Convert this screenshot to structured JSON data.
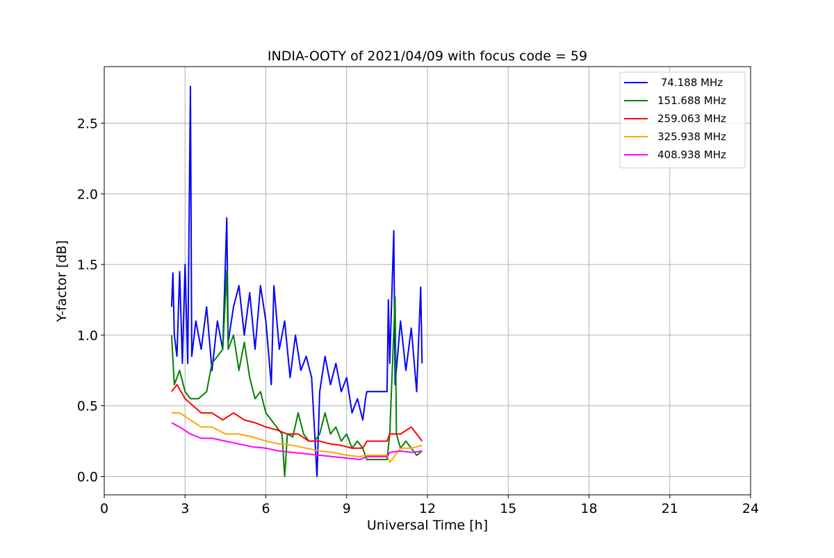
{
  "chart_data": {
    "type": "line",
    "title": "INDIA-OOTY of 2021/04/09 with focus code = 59",
    "xlabel": "Universal Time [h]",
    "ylabel": "Y-factor [dB]",
    "xlim": [
      0,
      24
    ],
    "ylim": [
      -0.13,
      2.9
    ],
    "x_ticks": [
      0,
      3,
      6,
      9,
      12,
      15,
      18,
      21,
      24
    ],
    "y_ticks": [
      0.0,
      0.5,
      1.0,
      1.5,
      2.0,
      2.5
    ],
    "x_tick_labels": [
      "0",
      "3",
      "6",
      "9",
      "12",
      "15",
      "18",
      "21",
      "24"
    ],
    "y_tick_labels": [
      "0.0",
      "0.5",
      "1.0",
      "1.5",
      "2.0",
      "2.5"
    ],
    "grid": true,
    "legend_position": "top-right",
    "series": [
      {
        "name": " 74.188 MHz",
        "color": "#0000ff",
        "points": [
          [
            2.5,
            1.2
          ],
          [
            2.55,
            1.44
          ],
          [
            2.6,
            1.0
          ],
          [
            2.7,
            0.85
          ],
          [
            2.8,
            1.45
          ],
          [
            2.9,
            0.8
          ],
          [
            3.0,
            1.5
          ],
          [
            3.1,
            0.8
          ],
          [
            3.2,
            2.76
          ],
          [
            3.25,
            0.85
          ],
          [
            3.4,
            1.1
          ],
          [
            3.6,
            0.9
          ],
          [
            3.8,
            1.2
          ],
          [
            4.0,
            0.75
          ],
          [
            4.2,
            1.1
          ],
          [
            4.4,
            0.9
          ],
          [
            4.55,
            1.83
          ],
          [
            4.6,
            0.95
          ],
          [
            4.8,
            1.2
          ],
          [
            5.0,
            1.35
          ],
          [
            5.2,
            1.0
          ],
          [
            5.4,
            1.3
          ],
          [
            5.6,
            0.9
          ],
          [
            5.8,
            1.35
          ],
          [
            6.0,
            1.1
          ],
          [
            6.2,
            0.65
          ],
          [
            6.3,
            1.35
          ],
          [
            6.5,
            0.9
          ],
          [
            6.7,
            1.1
          ],
          [
            6.9,
            0.7
          ],
          [
            7.1,
            1.0
          ],
          [
            7.3,
            0.75
          ],
          [
            7.5,
            0.85
          ],
          [
            7.7,
            0.7
          ],
          [
            7.9,
            0.0
          ],
          [
            8.0,
            0.6
          ],
          [
            8.2,
            0.85
          ],
          [
            8.4,
            0.65
          ],
          [
            8.6,
            0.8
          ],
          [
            8.8,
            0.6
          ],
          [
            9.0,
            0.7
          ],
          [
            9.2,
            0.45
          ],
          [
            9.4,
            0.55
          ],
          [
            9.6,
            0.4
          ],
          [
            9.7,
            0.55
          ],
          [
            9.75,
            0.6
          ],
          [
            10.5,
            0.6
          ],
          [
            10.55,
            1.25
          ],
          [
            10.6,
            0.8
          ],
          [
            10.75,
            1.74
          ],
          [
            10.8,
            0.65
          ],
          [
            11.0,
            1.1
          ],
          [
            11.2,
            0.75
          ],
          [
            11.4,
            1.05
          ],
          [
            11.6,
            0.6
          ],
          [
            11.75,
            1.34
          ],
          [
            11.8,
            0.8
          ]
        ]
      },
      {
        "name": "151.688 MHz",
        "color": "#008000",
        "points": [
          [
            2.5,
            1.0
          ],
          [
            2.6,
            0.65
          ],
          [
            2.8,
            0.75
          ],
          [
            3.0,
            0.6
          ],
          [
            3.2,
            0.55
          ],
          [
            3.5,
            0.55
          ],
          [
            3.8,
            0.6
          ],
          [
            4.0,
            0.8
          ],
          [
            4.2,
            0.85
          ],
          [
            4.4,
            0.9
          ],
          [
            4.55,
            1.46
          ],
          [
            4.6,
            0.9
          ],
          [
            4.8,
            1.0
          ],
          [
            5.0,
            0.75
          ],
          [
            5.2,
            0.95
          ],
          [
            5.4,
            0.7
          ],
          [
            5.6,
            0.55
          ],
          [
            5.8,
            0.6
          ],
          [
            6.0,
            0.45
          ],
          [
            6.2,
            0.4
          ],
          [
            6.4,
            0.35
          ],
          [
            6.6,
            0.3
          ],
          [
            6.7,
            0.0
          ],
          [
            6.8,
            0.3
          ],
          [
            7.0,
            0.28
          ],
          [
            7.2,
            0.45
          ],
          [
            7.4,
            0.3
          ],
          [
            7.6,
            0.25
          ],
          [
            7.8,
            0.25
          ],
          [
            8.0,
            0.3
          ],
          [
            8.2,
            0.45
          ],
          [
            8.4,
            0.3
          ],
          [
            8.6,
            0.35
          ],
          [
            8.8,
            0.25
          ],
          [
            9.0,
            0.3
          ],
          [
            9.2,
            0.2
          ],
          [
            9.4,
            0.25
          ],
          [
            9.6,
            0.2
          ],
          [
            9.75,
            0.12
          ],
          [
            10.5,
            0.12
          ],
          [
            10.6,
            0.3
          ],
          [
            10.8,
            1.27
          ],
          [
            10.85,
            0.3
          ],
          [
            11.0,
            0.2
          ],
          [
            11.2,
            0.25
          ],
          [
            11.4,
            0.2
          ],
          [
            11.6,
            0.15
          ],
          [
            11.8,
            0.18
          ]
        ]
      },
      {
        "name": "259.063 MHz",
        "color": "#ff0000",
        "points": [
          [
            2.5,
            0.6
          ],
          [
            2.7,
            0.65
          ],
          [
            3.0,
            0.55
          ],
          [
            3.3,
            0.5
          ],
          [
            3.6,
            0.45
          ],
          [
            4.0,
            0.45
          ],
          [
            4.4,
            0.4
          ],
          [
            4.8,
            0.45
          ],
          [
            5.2,
            0.4
          ],
          [
            5.6,
            0.38
          ],
          [
            6.0,
            0.35
          ],
          [
            6.4,
            0.33
          ],
          [
            6.8,
            0.3
          ],
          [
            7.2,
            0.3
          ],
          [
            7.6,
            0.25
          ],
          [
            8.0,
            0.25
          ],
          [
            8.4,
            0.23
          ],
          [
            8.8,
            0.22
          ],
          [
            9.2,
            0.2
          ],
          [
            9.6,
            0.2
          ],
          [
            9.75,
            0.25
          ],
          [
            10.5,
            0.25
          ],
          [
            10.6,
            0.3
          ],
          [
            11.0,
            0.3
          ],
          [
            11.4,
            0.35
          ],
          [
            11.6,
            0.3
          ],
          [
            11.8,
            0.25
          ]
        ]
      },
      {
        "name": "325.938 MHz",
        "color": "#ffa500",
        "points": [
          [
            2.5,
            0.45
          ],
          [
            2.8,
            0.45
          ],
          [
            3.2,
            0.4
          ],
          [
            3.6,
            0.35
          ],
          [
            4.0,
            0.35
          ],
          [
            4.5,
            0.3
          ],
          [
            5.0,
            0.3
          ],
          [
            5.5,
            0.28
          ],
          [
            6.0,
            0.25
          ],
          [
            6.5,
            0.23
          ],
          [
            7.0,
            0.22
          ],
          [
            7.5,
            0.2
          ],
          [
            8.0,
            0.18
          ],
          [
            8.5,
            0.17
          ],
          [
            9.0,
            0.15
          ],
          [
            9.5,
            0.14
          ],
          [
            9.75,
            0.15
          ],
          [
            10.5,
            0.15
          ],
          [
            10.6,
            0.1
          ],
          [
            11.0,
            0.2
          ],
          [
            11.4,
            0.2
          ],
          [
            11.8,
            0.22
          ]
        ]
      },
      {
        "name": "408.938 MHz",
        "color": "#ff00ff",
        "points": [
          [
            2.5,
            0.38
          ],
          [
            2.8,
            0.35
          ],
          [
            3.2,
            0.3
          ],
          [
            3.6,
            0.27
          ],
          [
            4.0,
            0.27
          ],
          [
            4.5,
            0.25
          ],
          [
            5.0,
            0.23
          ],
          [
            5.5,
            0.21
          ],
          [
            6.0,
            0.2
          ],
          [
            6.5,
            0.18
          ],
          [
            7.0,
            0.17
          ],
          [
            7.5,
            0.16
          ],
          [
            8.0,
            0.15
          ],
          [
            8.5,
            0.14
          ],
          [
            9.0,
            0.13
          ],
          [
            9.5,
            0.12
          ],
          [
            9.75,
            0.14
          ],
          [
            10.5,
            0.14
          ],
          [
            10.6,
            0.17
          ],
          [
            11.0,
            0.18
          ],
          [
            11.4,
            0.17
          ],
          [
            11.8,
            0.18
          ]
        ]
      }
    ]
  }
}
